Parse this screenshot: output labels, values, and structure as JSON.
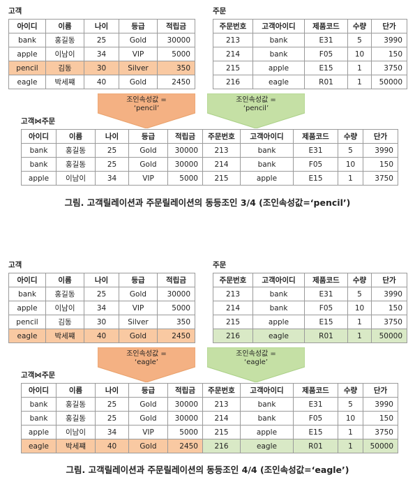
{
  "labels": {
    "customer": "고객",
    "order": "주문",
    "joined": "고객⋈주문"
  },
  "customer_headers": [
    "아이디",
    "이름",
    "나이",
    "등급",
    "적립금"
  ],
  "order_headers": [
    "주문번호",
    "고객아이디",
    "제품코드",
    "수량",
    "단가"
  ],
  "joined_headers": [
    "아이디",
    "이름",
    "나이",
    "등급",
    "적립금",
    "주문번호",
    "고객아이디",
    "제품코드",
    "수량",
    "단가"
  ],
  "customers": [
    [
      "bank",
      "홍길동",
      "25",
      "Gold",
      "30000"
    ],
    [
      "apple",
      "이남이",
      "34",
      "VIP",
      "5000"
    ],
    [
      "pencil",
      "김동",
      "30",
      "Silver",
      "350"
    ],
    [
      "eagle",
      "박세쨰",
      "40",
      "Gold",
      "2450"
    ]
  ],
  "orders": [
    [
      "213",
      "bank",
      "E31",
      "5",
      "3990"
    ],
    [
      "214",
      "bank",
      "F05",
      "10",
      "150"
    ],
    [
      "215",
      "apple",
      "E15",
      "1",
      "3750"
    ],
    [
      "216",
      "eagle",
      "R01",
      "1",
      "50000"
    ]
  ],
  "panel1": {
    "arrow_left": "조인속성값 =\n‘pencil’",
    "arrow_right": "조인속성값 =\n‘pencil’",
    "joined_rows": [
      [
        "bank",
        "홍길동",
        "25",
        "Gold",
        "30000",
        "213",
        "bank",
        "E31",
        "5",
        "3990"
      ],
      [
        "bank",
        "홍길동",
        "25",
        "Gold",
        "30000",
        "214",
        "bank",
        "F05",
        "10",
        "150"
      ],
      [
        "apple",
        "이남이",
        "34",
        "VIP",
        "5000",
        "215",
        "apple",
        "E15",
        "1",
        "3750"
      ]
    ],
    "caption": "그림. 고객릴레이션과 주문릴레이션의 동등조인 3/4 (조인속성값=‘pencil’)"
  },
  "panel2": {
    "arrow_left": "조인속성값 =\n‘eagle’",
    "arrow_right": "조인속성값 =\n‘eagle’",
    "joined_rows": [
      [
        "bank",
        "홍길동",
        "25",
        "Gold",
        "30000",
        "213",
        "bank",
        "E31",
        "5",
        "3990"
      ],
      [
        "bank",
        "홍길동",
        "25",
        "Gold",
        "30000",
        "214",
        "bank",
        "F05",
        "10",
        "150"
      ],
      [
        "apple",
        "이남이",
        "34",
        "VIP",
        "5000",
        "215",
        "apple",
        "E15",
        "1",
        "3750"
      ],
      [
        "eagle",
        "박세쨰",
        "40",
        "Gold",
        "2450",
        "216",
        "eagle",
        "R01",
        "1",
        "50000"
      ]
    ],
    "caption": "그림. 고객릴레이션과 주문릴레이션의 동등조인 4/4 (조인속성값=‘eagle’)"
  },
  "colors": {
    "orange": "#f9c9a2",
    "green": "#d9e9c6",
    "orange_arrow": "#f4b183",
    "green_arrow": "#c5e0a5"
  }
}
